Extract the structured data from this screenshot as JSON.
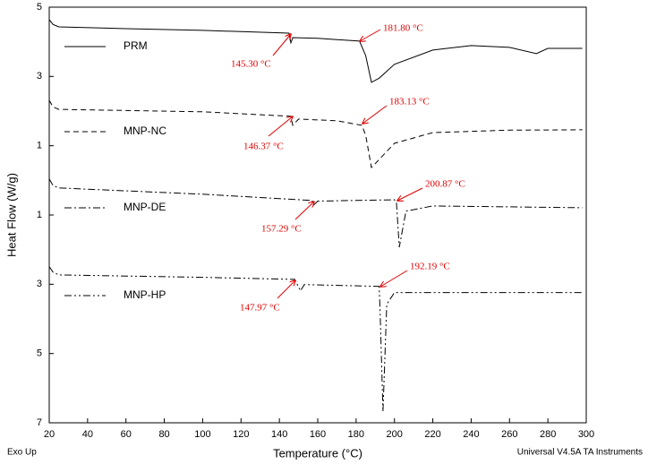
{
  "chart_data": {
    "type": "line",
    "xlabel": "Temperature (°C)",
    "ylabel": "Heat Flow (W/g)",
    "footer_left": "Exo Up",
    "footer_right": "Universal V4.5A TA Instruments",
    "xlim": [
      20,
      300
    ],
    "xticks": [
      20,
      40,
      60,
      80,
      100,
      120,
      140,
      160,
      180,
      200,
      220,
      240,
      260,
      280,
      300
    ],
    "ylim": [
      -7,
      5
    ],
    "yticks": [
      5,
      3,
      1,
      {
        "value": -1,
        "label": "1"
      },
      {
        "value": -3,
        "label": "3"
      },
      {
        "value": -5,
        "label": "5"
      },
      {
        "value": -7,
        "label": "7"
      }
    ],
    "series": [
      {
        "name": "PRM",
        "color": "#000000",
        "dash": "solid",
        "x": [
          20,
          22,
          25,
          60,
          100,
          145,
          146,
          147,
          160,
          181.8,
          185,
          188,
          192,
          200,
          220,
          240,
          260,
          274,
          280,
          298
        ],
        "values": [
          4.64,
          4.5,
          4.43,
          4.38,
          4.33,
          4.25,
          3.97,
          4.12,
          4.1,
          4.02,
          3.6,
          2.83,
          2.95,
          3.35,
          3.76,
          3.89,
          3.84,
          3.66,
          3.81,
          3.81
        ]
      },
      {
        "name": "MNP-NC",
        "color": "#000000",
        "dash": "dashed",
        "x": [
          20,
          22,
          25,
          100,
          146,
          147,
          150,
          170,
          183,
          185,
          188,
          192,
          200,
          220,
          260,
          298
        ],
        "values": [
          2.31,
          2.12,
          2.05,
          1.98,
          1.85,
          1.59,
          1.77,
          1.72,
          1.59,
          1.3,
          0.37,
          0.6,
          1.07,
          1.38,
          1.45,
          1.46
        ]
      },
      {
        "name": "MNP-DE",
        "color": "#000000",
        "dash": "dashdot",
        "x": [
          20,
          22,
          25,
          100,
          157,
          158,
          160,
          200,
          201,
          202.5,
          206,
          220,
          298
        ],
        "values": [
          0.04,
          -0.15,
          -0.22,
          -0.4,
          -0.58,
          -0.71,
          -0.6,
          -0.56,
          -0.62,
          -1.93,
          -0.89,
          -0.74,
          -0.79
        ]
      },
      {
        "name": "MNP-HP",
        "color": "#000000",
        "dash": "dashdotdot",
        "x": [
          20,
          22,
          25,
          100,
          148,
          151,
          153,
          192,
          192.5,
          194,
          196,
          200,
          298
        ],
        "values": [
          -2.49,
          -2.65,
          -2.73,
          -2.8,
          -2.86,
          -3.19,
          -3.01,
          -3.06,
          -3.7,
          -6.68,
          -3.58,
          -3.24,
          -3.24
        ]
      }
    ],
    "annotations": [
      "145.30 °C",
      "181.80 °C",
      "183.13 °C",
      "146.37 °C",
      "200.87 °C",
      "157.29 °C",
      "192.19 °C",
      "147.97 °C"
    ]
  }
}
